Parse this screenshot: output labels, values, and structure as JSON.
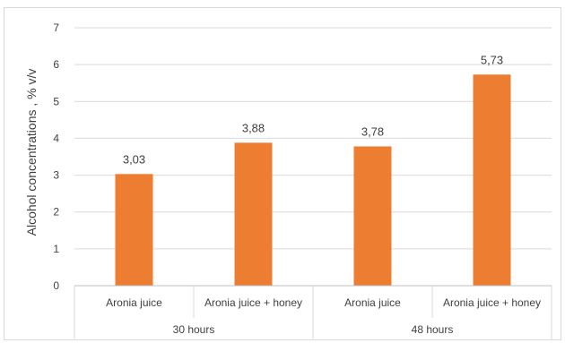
{
  "chart_data": {
    "type": "bar",
    "ylabel": "Alcohol concentrations , % v/v",
    "ylim": [
      0,
      7
    ],
    "yticks": [
      0,
      1,
      2,
      3,
      4,
      5,
      6,
      7
    ],
    "grid": true,
    "groups": [
      {
        "label": "30 hours",
        "categories": [
          "Aronia juice",
          "Aronia juice + honey"
        ]
      },
      {
        "label": "48 hours",
        "categories": [
          "Aronia juice",
          "Aronia juice + honey"
        ]
      }
    ],
    "categories": [
      "Aronia juice",
      "Aronia juice + honey",
      "Aronia juice",
      "Aronia juice + honey"
    ],
    "values": [
      3.03,
      3.88,
      3.78,
      5.73
    ],
    "data_labels": [
      "3,03",
      "3,88",
      "3,78",
      "5,73"
    ],
    "bar_color": "#ED7D31"
  }
}
